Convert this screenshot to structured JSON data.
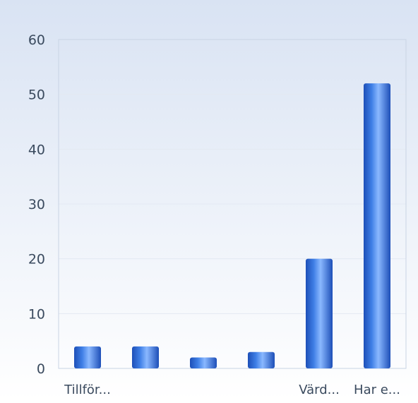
{
  "chart_data": {
    "type": "bar",
    "title": "",
    "xlabel": "",
    "ylabel": "",
    "categories": [
      "Tillför...",
      "",
      "",
      "",
      "Värd...",
      "Har e..."
    ],
    "values": [
      4,
      4,
      2,
      3,
      20,
      52
    ],
    "ylim": [
      0,
      60
    ],
    "yticks": [
      0,
      10,
      20,
      30,
      40,
      50,
      60
    ],
    "grid": true,
    "legend": "none",
    "colors": {
      "bar_dark": "#1d4fb8",
      "bar_mid": "#3f7fe6",
      "bar_light": "#8ab8ff",
      "bg_top": "#d9e3f3",
      "bg_bottom": "#ffffff",
      "plot_border": "#c9d4e4",
      "gridline": "#e3e9f2",
      "tick_text": "#3a4a5e"
    }
  }
}
